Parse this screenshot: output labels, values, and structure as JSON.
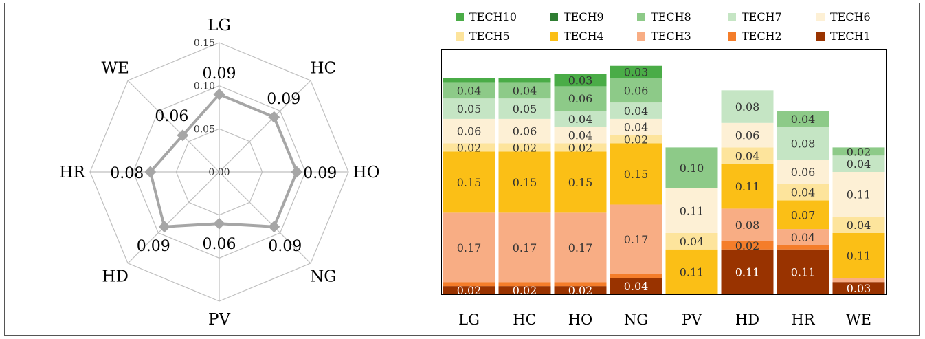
{
  "chart_data": [
    {
      "type": "radar",
      "axes": [
        "LG",
        "HC",
        "HO",
        "NG",
        "PV",
        "HD",
        "HR",
        "WE"
      ],
      "values": [
        0.09,
        0.09,
        0.09,
        0.09,
        0.06,
        0.09,
        0.08,
        0.06
      ],
      "value_labels": [
        "0.09",
        "0.09",
        "0.09",
        "0.09",
        "0.06",
        "0.09",
        "0.08",
        "0.06"
      ],
      "rlim": [
        0,
        0.15
      ],
      "ticks": [
        "0.00",
        "0.05",
        "0.10",
        "0.15"
      ],
      "series_color": "#a6a6a6",
      "grid_color": "#bfbfbf"
    },
    {
      "type": "stacked_bar",
      "categories": [
        "LG",
        "HC",
        "HO",
        "NG",
        "PV",
        "HD",
        "HR",
        "WE"
      ],
      "ylim": [
        0,
        0.6
      ],
      "legend_position": "top",
      "series": [
        {
          "name": "TECH1",
          "color": "#993300",
          "values": [
            0.02,
            0.02,
            0.02,
            0.04,
            0.0,
            0.11,
            0.11,
            0.03
          ]
        },
        {
          "name": "TECH2",
          "color": "#f47d2a",
          "values": [
            0.01,
            0.01,
            0.01,
            0.01,
            0.0,
            0.02,
            0.01,
            0.0
          ]
        },
        {
          "name": "TECH3",
          "color": "#f8ad84",
          "values": [
            0.17,
            0.17,
            0.17,
            0.17,
            0.0,
            0.08,
            0.04,
            0.01
          ]
        },
        {
          "name": "TECH4",
          "color": "#fbbf16",
          "values": [
            0.15,
            0.15,
            0.15,
            0.15,
            0.11,
            0.11,
            0.07,
            0.11
          ]
        },
        {
          "name": "TECH5",
          "color": "#fde49c",
          "values": [
            0.02,
            0.02,
            0.02,
            0.02,
            0.04,
            0.04,
            0.04,
            0.04
          ]
        },
        {
          "name": "TECH6",
          "color": "#fdf0d5",
          "values": [
            0.06,
            0.06,
            0.04,
            0.04,
            0.11,
            0.06,
            0.06,
            0.11
          ]
        },
        {
          "name": "TECH7",
          "color": "#c5e5c4",
          "values": [
            0.05,
            0.05,
            0.04,
            0.04,
            0.0,
            0.08,
            0.08,
            0.04
          ]
        },
        {
          "name": "TECH8",
          "color": "#8dca88",
          "values": [
            0.04,
            0.04,
            0.06,
            0.06,
            0.1,
            0.0,
            0.04,
            0.02
          ]
        },
        {
          "name": "TECH9",
          "color": "#2e7d32",
          "values": [
            0.0,
            0.0,
            0.0,
            0.0,
            0.0,
            0.0,
            0.0,
            0.0
          ]
        },
        {
          "name": "TECH10",
          "color": "#4aac47",
          "values": [
            0.01,
            0.01,
            0.03,
            0.03,
            0.0,
            0.0,
            0.0,
            0.0
          ]
        }
      ],
      "data_labels": [
        {
          "category": "LG",
          "series": "TECH1",
          "text": "0.02"
        },
        {
          "category": "LG",
          "series": "TECH3",
          "text": "0.17"
        },
        {
          "category": "LG",
          "series": "TECH4",
          "text": "0.15"
        },
        {
          "category": "LG",
          "series": "TECH5",
          "text": "0.02"
        },
        {
          "category": "LG",
          "series": "TECH6",
          "text": "0.06"
        },
        {
          "category": "LG",
          "series": "TECH7",
          "text": "0.05"
        },
        {
          "category": "LG",
          "series": "TECH8",
          "text": "0.04"
        },
        {
          "category": "HC",
          "series": "TECH1",
          "text": "0.02"
        },
        {
          "category": "HC",
          "series": "TECH3",
          "text": "0.17"
        },
        {
          "category": "HC",
          "series": "TECH4",
          "text": "0.15"
        },
        {
          "category": "HC",
          "series": "TECH5",
          "text": "0.02"
        },
        {
          "category": "HC",
          "series": "TECH6",
          "text": "0.06"
        },
        {
          "category": "HC",
          "series": "TECH7",
          "text": "0.05"
        },
        {
          "category": "HC",
          "series": "TECH8",
          "text": "0.04"
        },
        {
          "category": "HO",
          "series": "TECH1",
          "text": "0.02"
        },
        {
          "category": "HO",
          "series": "TECH3",
          "text": "0.17"
        },
        {
          "category": "HO",
          "series": "TECH4",
          "text": "0.15"
        },
        {
          "category": "HO",
          "series": "TECH5",
          "text": "0.02"
        },
        {
          "category": "HO",
          "series": "TECH6",
          "text": "0.04"
        },
        {
          "category": "HO",
          "series": "TECH7",
          "text": "0.04"
        },
        {
          "category": "HO",
          "series": "TECH8",
          "text": "0.06"
        },
        {
          "category": "HO",
          "series": "TECH10",
          "text": "0.03"
        },
        {
          "category": "NG",
          "series": "TECH1",
          "text": "0.04"
        },
        {
          "category": "NG",
          "series": "TECH3",
          "text": "0.17"
        },
        {
          "category": "NG",
          "series": "TECH4",
          "text": "0.15"
        },
        {
          "category": "NG",
          "series": "TECH5",
          "text": "0.02"
        },
        {
          "category": "NG",
          "series": "TECH6",
          "text": "0.04"
        },
        {
          "category": "NG",
          "series": "TECH7",
          "text": "0.04"
        },
        {
          "category": "NG",
          "series": "TECH8",
          "text": "0.06"
        },
        {
          "category": "NG",
          "series": "TECH10",
          "text": "0.03"
        },
        {
          "category": "PV",
          "series": "TECH4",
          "text": "0.11"
        },
        {
          "category": "PV",
          "series": "TECH5",
          "text": "0.04"
        },
        {
          "category": "PV",
          "series": "TECH6",
          "text": "0.11"
        },
        {
          "category": "PV",
          "series": "TECH8",
          "text": "0.10"
        },
        {
          "category": "HD",
          "series": "TECH1",
          "text": "0.11"
        },
        {
          "category": "HD",
          "series": "TECH2",
          "text": "0.02"
        },
        {
          "category": "HD",
          "series": "TECH3",
          "text": "0.08"
        },
        {
          "category": "HD",
          "series": "TECH4",
          "text": "0.11"
        },
        {
          "category": "HD",
          "series": "TECH5",
          "text": "0.04"
        },
        {
          "category": "HD",
          "series": "TECH6",
          "text": "0.06"
        },
        {
          "category": "HD",
          "series": "TECH7",
          "text": "0.08"
        },
        {
          "category": "HR",
          "series": "TECH1",
          "text": "0.11"
        },
        {
          "category": "HR",
          "series": "TECH3",
          "text": "0.04"
        },
        {
          "category": "HR",
          "series": "TECH4",
          "text": "0.07"
        },
        {
          "category": "HR",
          "series": "TECH5",
          "text": "0.04"
        },
        {
          "category": "HR",
          "series": "TECH6",
          "text": "0.06"
        },
        {
          "category": "HR",
          "series": "TECH7",
          "text": "0.08"
        },
        {
          "category": "HR",
          "series": "TECH8",
          "text": "0.04"
        },
        {
          "category": "WE",
          "series": "TECH1",
          "text": "0.03"
        },
        {
          "category": "WE",
          "series": "TECH4",
          "text": "0.11"
        },
        {
          "category": "WE",
          "series": "TECH5",
          "text": "0.04"
        },
        {
          "category": "WE",
          "series": "TECH6",
          "text": "0.11"
        },
        {
          "category": "WE",
          "series": "TECH7",
          "text": "0.04"
        },
        {
          "category": "WE",
          "series": "TECH8",
          "text": "0.02"
        }
      ],
      "legend_order": [
        "TECH10",
        "TECH9",
        "TECH8",
        "TECH7",
        "TECH6",
        "TECH5",
        "TECH4",
        "TECH3",
        "TECH2",
        "TECH1"
      ]
    }
  ]
}
